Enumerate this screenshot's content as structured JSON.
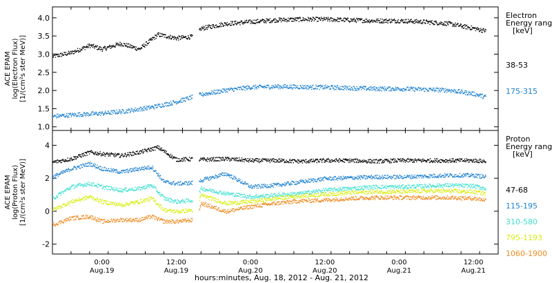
{
  "colors": {
    "black": "#000000",
    "blue": "#1a7fd0",
    "cyan": "#3fe0d0",
    "yellow": "#d8ee10",
    "orange": "#f08a20"
  },
  "shared_x": {
    "xlabel": "hours:minutes, Aug. 18, 2012 - Aug. 21, 2012",
    "range_hours": [
      -8,
      64
    ],
    "ticks": [
      {
        "h": 0,
        "t1": "0:00",
        "t2": "Aug.19"
      },
      {
        "h": 12,
        "t1": "12:00",
        "t2": "Aug.19"
      },
      {
        "h": 24,
        "t1": "0:00",
        "t2": "Aug.20"
      },
      {
        "h": 36,
        "t1": "12:00",
        "t2": "Aug.20"
      },
      {
        "h": 48,
        "t1": "0:00",
        "t2": "Aug.21"
      },
      {
        "h": 60,
        "t1": "12:00",
        "t2": "Aug.21"
      }
    ]
  },
  "chart_data": [
    {
      "type": "scatter",
      "ylabel_lines": [
        "ACE EPAM",
        "log(Electron Flux)",
        "[1/(cm²s ster MeV)]"
      ],
      "ylim": [
        0.9,
        4.3
      ],
      "yticks": [
        "1.0",
        "1.5",
        "2.0",
        "2.5",
        "3.0",
        "3.5",
        "4.0"
      ],
      "yvalues": [
        1.0,
        1.5,
        2.0,
        2.5,
        3.0,
        3.5,
        4.0
      ],
      "legend_title_lines": [
        "Electron",
        "Energy ranges",
        "[keV]"
      ],
      "series": [
        {
          "name": "38-53",
          "color_key": "black",
          "x": [
            -8,
            -5,
            -2,
            0,
            3,
            6,
            9,
            12,
            15,
            16,
            20,
            24,
            28,
            32,
            36,
            40,
            44,
            48,
            52,
            56,
            60,
            62
          ],
          "y": [
            2.95,
            3.05,
            3.25,
            3.15,
            3.3,
            3.15,
            3.55,
            3.45,
            3.5,
            3.72,
            3.85,
            3.9,
            3.95,
            3.97,
            3.97,
            3.95,
            3.93,
            3.93,
            3.9,
            3.85,
            3.72,
            3.65
          ]
        },
        {
          "name": "175-315",
          "color_key": "blue",
          "x": [
            -8,
            -4,
            0,
            4,
            8,
            12,
            15,
            16,
            20,
            24,
            28,
            32,
            36,
            40,
            44,
            48,
            52,
            56,
            60,
            62
          ],
          "y": [
            1.3,
            1.35,
            1.38,
            1.45,
            1.55,
            1.7,
            1.85,
            1.9,
            2.02,
            2.1,
            2.12,
            2.11,
            2.1,
            2.08,
            2.06,
            2.06,
            2.04,
            2.02,
            1.92,
            1.83
          ]
        }
      ]
    },
    {
      "type": "scatter",
      "ylabel_lines": [
        "ACE EPAM",
        "log(Proton Flux)",
        "[1/(cm²s ster MeV)]"
      ],
      "ylim": [
        -2.6,
        4.9
      ],
      "yticks": [
        "-2",
        "0",
        "2",
        "4"
      ],
      "yvalues": [
        -2,
        0,
        2,
        4
      ],
      "legend_title_lines": [
        "Proton",
        "Energy ranges",
        "[keV]"
      ],
      "series": [
        {
          "name": "47-68",
          "color_key": "black",
          "x": [
            -8,
            -5,
            -2,
            0,
            3,
            6,
            9,
            12,
            15,
            16,
            20,
            24,
            28,
            32,
            36,
            40,
            44,
            48,
            52,
            56,
            60,
            62
          ],
          "y": [
            3.0,
            3.2,
            3.6,
            3.5,
            3.4,
            3.6,
            3.9,
            3.15,
            3.2,
            3.15,
            3.2,
            3.1,
            3.1,
            3.05,
            3.1,
            3.1,
            3.05,
            3.1,
            3.1,
            3.1,
            3.1,
            3.05
          ]
        },
        {
          "name": "115-195",
          "color_key": "blue",
          "x": [
            -8,
            -5,
            -2,
            0,
            3,
            6,
            8,
            10,
            12,
            15,
            16,
            20,
            24,
            28,
            32,
            36,
            40,
            44,
            48,
            52,
            56,
            60,
            62
          ],
          "y": [
            2.1,
            2.6,
            2.9,
            2.6,
            2.4,
            2.6,
            2.7,
            1.8,
            1.7,
            1.75,
            1.9,
            2.3,
            1.5,
            1.6,
            1.8,
            2.0,
            2.05,
            2.1,
            2.1,
            2.15,
            2.2,
            2.2,
            2.1
          ]
        },
        {
          "name": "310-580",
          "color_key": "cyan",
          "x": [
            -8,
            -5,
            -2,
            0,
            3,
            6,
            8,
            10,
            12,
            15,
            16,
            20,
            24,
            28,
            32,
            36,
            40,
            44,
            48,
            52,
            56,
            60,
            62
          ],
          "y": [
            0.8,
            1.5,
            1.7,
            1.5,
            1.3,
            1.4,
            1.6,
            0.8,
            0.6,
            0.7,
            1.4,
            1.1,
            0.9,
            1.0,
            1.1,
            1.3,
            1.4,
            1.5,
            1.5,
            1.55,
            1.6,
            1.55,
            1.4
          ]
        },
        {
          "name": "795-1193",
          "color_key": "yellow",
          "x": [
            -8,
            -5,
            -2,
            0,
            3,
            6,
            8,
            10,
            12,
            15,
            16,
            20,
            24,
            28,
            32,
            36,
            40,
            44,
            48,
            52,
            56,
            60,
            62
          ],
          "y": [
            0.1,
            0.6,
            0.9,
            0.6,
            0.4,
            0.6,
            0.8,
            0.1,
            0.0,
            0.1,
            1.0,
            0.5,
            0.6,
            0.8,
            0.95,
            1.05,
            1.15,
            1.2,
            1.2,
            1.25,
            1.25,
            1.2,
            1.1
          ]
        },
        {
          "name": "1060-1900",
          "color_key": "orange",
          "x": [
            -8,
            -5,
            -2,
            0,
            3,
            6,
            8,
            10,
            12,
            15,
            16,
            20,
            24,
            28,
            32,
            36,
            40,
            44,
            48,
            52,
            56,
            60,
            62
          ],
          "y": [
            -0.8,
            -0.4,
            -0.3,
            -0.6,
            -0.5,
            -0.5,
            -0.3,
            -0.6,
            -0.6,
            -0.5,
            0.5,
            0.0,
            0.3,
            0.5,
            0.65,
            0.7,
            0.8,
            0.85,
            0.85,
            0.85,
            0.85,
            0.8,
            0.7
          ]
        }
      ]
    }
  ]
}
